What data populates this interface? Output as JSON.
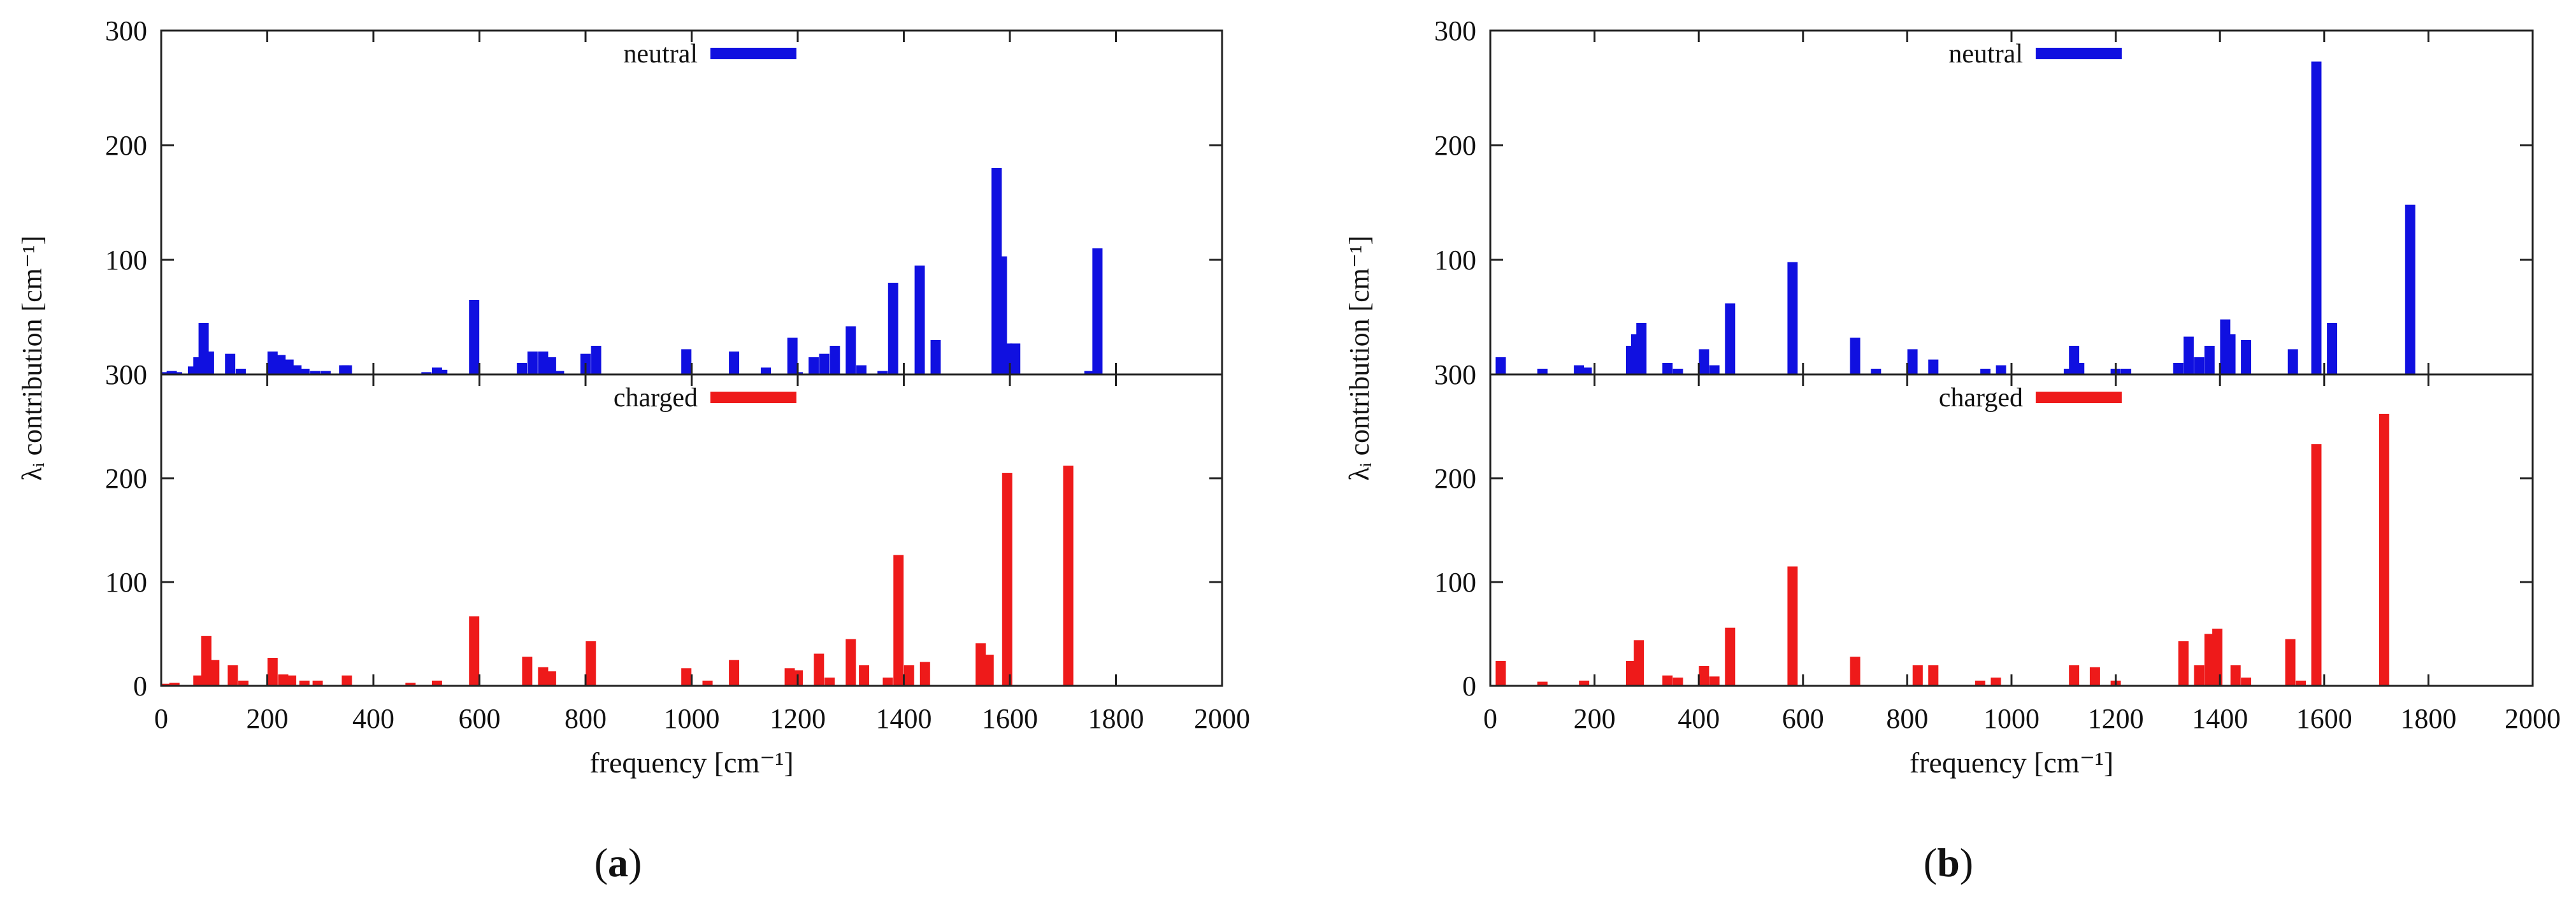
{
  "colors": {
    "neutral": "#1010e0",
    "charged": "#ee1a1a",
    "axis": "#222222"
  },
  "panels": [
    {
      "label_letter": "a"
    },
    {
      "label_letter": "b"
    }
  ],
  "chart_data": [
    {
      "panel": "a",
      "type": "bar",
      "xlabel": "frequency [cm⁻¹]",
      "ylabel": "λᵢ contribution [cm⁻¹]",
      "xlim": [
        0,
        2000
      ],
      "xticks": [
        0,
        200,
        400,
        600,
        800,
        1000,
        1200,
        1400,
        1600,
        1800,
        2000
      ],
      "subplots": [
        {
          "legend": "neutral",
          "color": "#1010e0",
          "ylim": [
            0,
            300
          ],
          "yticks": [
            0,
            100,
            200,
            300
          ],
          "x": [
            10,
            20,
            30,
            60,
            70,
            80,
            90,
            130,
            150,
            210,
            225,
            240,
            255,
            270,
            290,
            310,
            345,
            350,
            500,
            520,
            530,
            590,
            680,
            700,
            720,
            735,
            750,
            800,
            820,
            990,
            1080,
            1140,
            1190,
            1200,
            1230,
            1250,
            1270,
            1300,
            1320,
            1360,
            1380,
            1430,
            1460,
            1575,
            1585,
            1595,
            1610,
            1750,
            1765
          ],
          "values": [
            2,
            3,
            2,
            7,
            15,
            45,
            20,
            18,
            5,
            20,
            17,
            13,
            8,
            5,
            3,
            3,
            8,
            8,
            2,
            6,
            4,
            65,
            10,
            20,
            20,
            15,
            3,
            18,
            25,
            22,
            20,
            6,
            32,
            2,
            15,
            18,
            25,
            42,
            8,
            3,
            80,
            95,
            30,
            180,
            103,
            27,
            27,
            3,
            110
          ]
        },
        {
          "legend": "charged",
          "color": "#ee1a1a",
          "ylim": [
            0,
            300
          ],
          "yticks": [
            0,
            100,
            200,
            300
          ],
          "x": [
            10,
            25,
            70,
            85,
            100,
            135,
            155,
            210,
            230,
            245,
            270,
            295,
            350,
            470,
            520,
            590,
            690,
            720,
            735,
            810,
            990,
            1030,
            1080,
            1185,
            1200,
            1240,
            1260,
            1300,
            1325,
            1370,
            1390,
            1410,
            1440,
            1545,
            1560,
            1595,
            1710
          ],
          "values": [
            2,
            3,
            10,
            48,
            25,
            20,
            5,
            27,
            11,
            10,
            5,
            5,
            10,
            3,
            5,
            67,
            28,
            18,
            14,
            43,
            17,
            5,
            25,
            17,
            15,
            31,
            8,
            45,
            20,
            8,
            126,
            20,
            23,
            41,
            30,
            205,
            212
          ]
        }
      ]
    },
    {
      "panel": "b",
      "type": "bar",
      "xlabel": "frequency [cm⁻¹]",
      "ylabel": "λᵢ contribution [cm⁻¹]",
      "xlim": [
        0,
        2000
      ],
      "xticks": [
        0,
        200,
        400,
        600,
        800,
        1000,
        1200,
        1400,
        1600,
        1800,
        2000
      ],
      "subplots": [
        {
          "legend": "neutral",
          "color": "#1010e0",
          "ylim": [
            0,
            300
          ],
          "yticks": [
            0,
            100,
            200,
            300
          ],
          "x": [
            20,
            100,
            170,
            185,
            270,
            280,
            290,
            340,
            360,
            410,
            430,
            460,
            580,
            700,
            740,
            810,
            850,
            950,
            980,
            1110,
            1120,
            1130,
            1200,
            1220,
            1320,
            1340,
            1360,
            1380,
            1410,
            1420,
            1450,
            1540,
            1585,
            1615,
            1765
          ],
          "values": [
            15,
            5,
            8,
            6,
            25,
            35,
            45,
            10,
            5,
            22,
            8,
            62,
            98,
            32,
            5,
            22,
            13,
            5,
            8,
            5,
            25,
            10,
            5,
            5,
            10,
            33,
            15,
            25,
            48,
            35,
            30,
            22,
            273,
            45,
            148
          ]
        },
        {
          "legend": "charged",
          "color": "#ee1a1a",
          "ylim": [
            0,
            300
          ],
          "yticks": [
            0,
            100,
            200,
            300
          ],
          "x": [
            20,
            100,
            180,
            270,
            285,
            340,
            360,
            410,
            430,
            460,
            580,
            700,
            820,
            850,
            940,
            970,
            1120,
            1160,
            1200,
            1330,
            1360,
            1380,
            1395,
            1430,
            1450,
            1535,
            1555,
            1585,
            1715
          ],
          "values": [
            24,
            4,
            5,
            24,
            44,
            10,
            8,
            19,
            9,
            56,
            115,
            28,
            20,
            20,
            5,
            8,
            20,
            18,
            5,
            43,
            20,
            50,
            55,
            20,
            8,
            45,
            5,
            233,
            262
          ]
        }
      ]
    }
  ]
}
